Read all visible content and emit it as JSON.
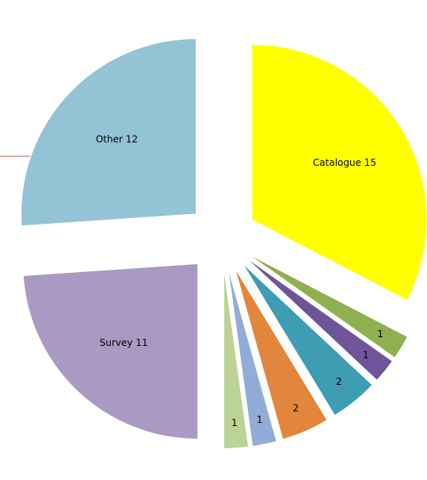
{
  "chart_data": {
    "type": "pie",
    "values": [
      15,
      1,
      1,
      2,
      2,
      1,
      1,
      11,
      12
    ],
    "value_labels": [
      "Catalogue 15",
      "1",
      "1",
      "2",
      "2",
      "1",
      "1",
      "Survey 11",
      "Other 12"
    ],
    "colors": [
      "#ffff00",
      "#8fb04f",
      "#70549a",
      "#3f9db3",
      "#e3863d",
      "#91acd6",
      "#bcd396",
      "#a999c3",
      "#93c3d5"
    ]
  }
}
